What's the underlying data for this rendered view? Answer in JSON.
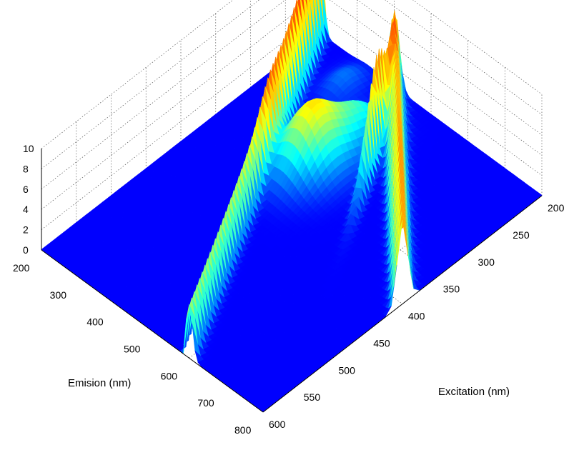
{
  "chart_data": {
    "type": "surface",
    "title": "",
    "xlabel": "Emision (nm)",
    "ylabel": "Excitation (nm)",
    "zlabel": "",
    "xlim": [
      200,
      800
    ],
    "ylim": [
      200,
      600
    ],
    "zlim": [
      0,
      10
    ],
    "x_ticks": [
      "200",
      "300",
      "400",
      "500",
      "600",
      "700",
      "800"
    ],
    "y_ticks": [
      "200",
      "250",
      "300",
      "350",
      "400",
      "450",
      "500",
      "550",
      "600"
    ],
    "z_ticks": [
      "0",
      "2",
      "4",
      "6",
      "8",
      "10"
    ],
    "grid": true,
    "colormap": "jet",
    "features": [
      {
        "kind": "rayleigh_ridge_1st_order",
        "emission_equals_excitation": true,
        "peak_height": 9.5
      },
      {
        "kind": "rayleigh_ridge_2nd_order",
        "emission_equals_twice_excitation": true,
        "peak_height": 8.5
      },
      {
        "kind": "fluorescence_peak",
        "excitation": 330,
        "emission": 425,
        "height": 6.0
      },
      {
        "kind": "fluorescence_peak",
        "excitation": 270,
        "emission": 440,
        "height": 2.5
      },
      {
        "kind": "fluorescence_peak",
        "excitation": 235,
        "emission": 330,
        "height": 1.3
      },
      {
        "kind": "raman_ridge",
        "height": 8.5
      }
    ]
  }
}
